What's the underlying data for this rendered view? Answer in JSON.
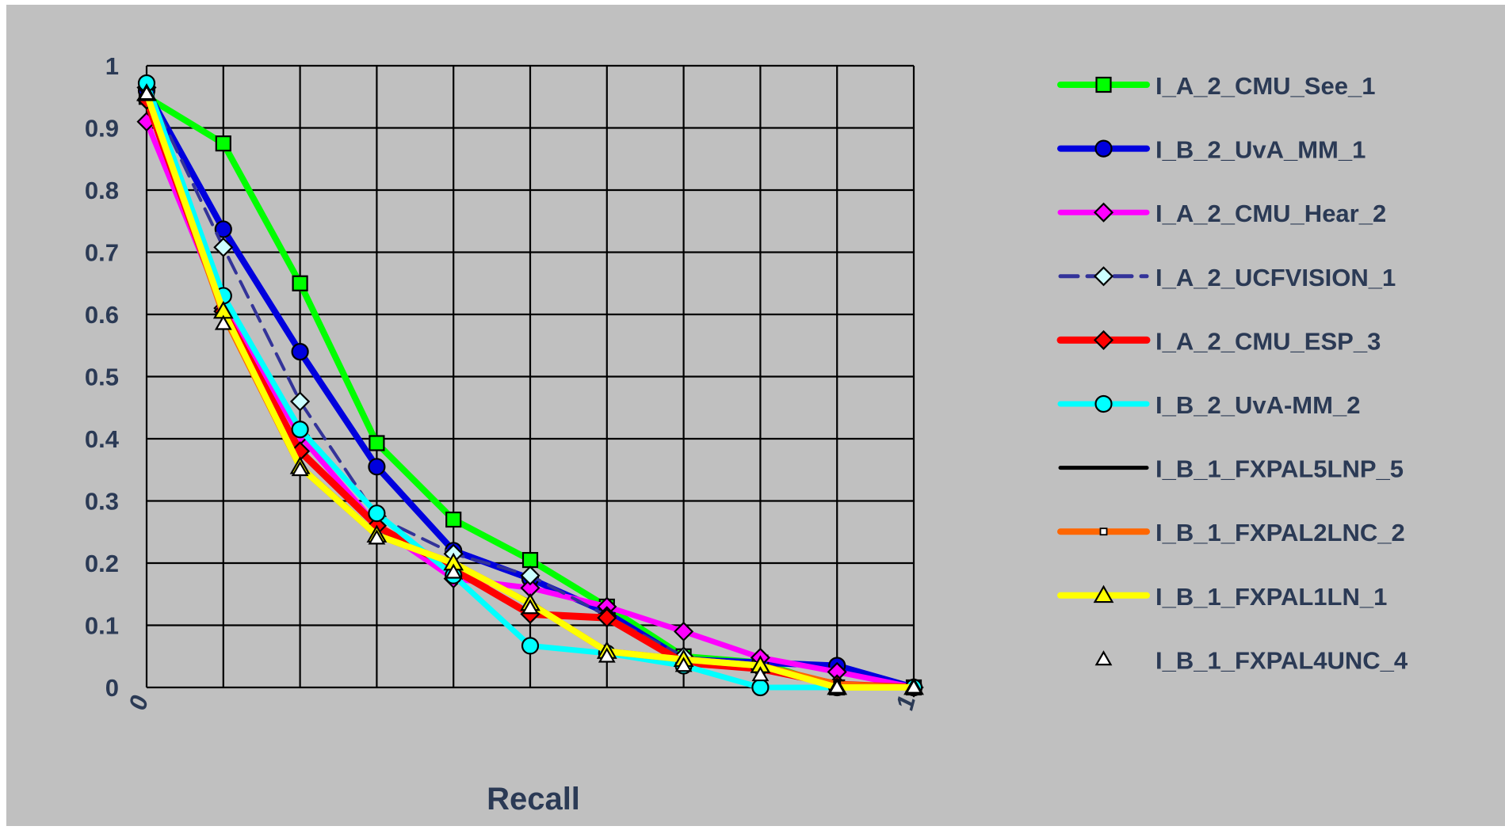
{
  "chart_data": {
    "type": "line",
    "title": "",
    "xlabel": "Recall",
    "ylabel": "",
    "xlim": [
      0,
      1
    ],
    "ylim": [
      0,
      1
    ],
    "grid": true,
    "legend_position": "right",
    "x": [
      0,
      0.1,
      0.2,
      0.3,
      0.4,
      0.5,
      0.6,
      0.7,
      0.8,
      0.9,
      1
    ],
    "x_tick_labels": [
      "0",
      "",
      "",
      "",
      "",
      "",
      "",
      "",
      "",
      "",
      "1"
    ],
    "y_ticks": [
      0,
      0.1,
      0.2,
      0.3,
      0.4,
      0.5,
      0.6,
      0.7,
      0.8,
      0.9,
      1
    ],
    "y_tick_labels": [
      "0",
      "0.1",
      "0.2",
      "0.3",
      "0.4",
      "0.5",
      "0.6",
      "0.7",
      "0.8",
      "0.9",
      "1"
    ],
    "colors": {
      "page_background": "#ffffff",
      "chart_background": "#c0c0c0",
      "grid": "#000000",
      "text": "#2b3a55"
    },
    "series": [
      {
        "name": "I_A_2_CMU_See_1",
        "color": "#00ff00",
        "width": 8,
        "marker": "square",
        "marker_fill": "#00ff00",
        "marker_size": 9,
        "dash": "",
        "values": [
          0.95,
          0.875,
          0.65,
          0.393,
          0.27,
          0.205,
          0.13,
          0.05,
          0.04,
          0.0,
          0.0
        ]
      },
      {
        "name": "I_B_2_UvA_MM_1",
        "color": "#0000dd",
        "width": 8,
        "marker": "circle",
        "marker_fill": "#0000dd",
        "marker_size": 10,
        "dash": "",
        "values": [
          0.96,
          0.737,
          0.54,
          0.355,
          0.22,
          0.175,
          0.12,
          0.045,
          0.04,
          0.035,
          0.0
        ]
      },
      {
        "name": "I_A_2_CMU_Hear_2",
        "color": "#ff00ff",
        "width": 7,
        "marker": "diamond",
        "marker_fill": "#ff00ff",
        "marker_size": 11,
        "dash": "",
        "values": [
          0.91,
          0.61,
          0.405,
          0.26,
          0.175,
          0.16,
          0.13,
          0.09,
          0.048,
          0.025,
          0.0
        ]
      },
      {
        "name": "I_A_2_UCFVISION_1",
        "color": "#333399",
        "width": 4,
        "marker": "diamond",
        "marker_fill": "#ccffff",
        "marker_size": 11,
        "dash": "22,12",
        "values": [
          0.965,
          0.708,
          0.46,
          0.275,
          0.215,
          0.18,
          0.115,
          0.05,
          0.03,
          0.005,
          0.0
        ]
      },
      {
        "name": "I_A_2_CMU_ESP_3",
        "color": "#ff0000",
        "width": 9,
        "marker": "diamond",
        "marker_fill": "#ff0000",
        "marker_size": 11,
        "dash": "",
        "values": [
          0.945,
          0.605,
          0.38,
          0.26,
          0.19,
          0.118,
          0.112,
          0.04,
          0.03,
          0.005,
          0.0
        ]
      },
      {
        "name": "I_B_2_UvA-MM_2",
        "color": "#00ffff",
        "width": 7,
        "marker": "circle",
        "marker_fill": "#00ffff",
        "marker_size": 10,
        "dash": "",
        "values": [
          0.972,
          0.63,
          0.415,
          0.28,
          0.18,
          0.067,
          0.055,
          0.035,
          0.0,
          0.0,
          0.0
        ]
      },
      {
        "name": "I_B_1_FXPAL5LNP_5",
        "color": "#000000",
        "width": 2,
        "marker": "none",
        "marker_fill": "#000000",
        "marker_size": 0,
        "dash": "",
        "values": [
          0.955,
          0.6,
          0.36,
          0.25,
          0.2,
          0.14,
          0.06,
          0.045,
          0.035,
          0.005,
          0.0
        ]
      },
      {
        "name": "I_B_1_FXPAL2LNC_2",
        "color": "#ff6600",
        "width": 8,
        "marker": "small-square",
        "marker_fill": "#ffffff",
        "marker_size": 4,
        "dash": "",
        "values": [
          0.955,
          0.6,
          0.355,
          0.245,
          0.2,
          0.135,
          0.058,
          0.045,
          0.035,
          0.005,
          0.0
        ]
      },
      {
        "name": "I_B_1_FXPAL1LN_1",
        "color": "#ffff00",
        "width": 8,
        "marker": "triangle",
        "marker_fill": "#ffff00",
        "marker_size": 11,
        "dash": "",
        "values": [
          0.955,
          0.605,
          0.355,
          0.245,
          0.2,
          0.135,
          0.058,
          0.045,
          0.035,
          0.0,
          0.0
        ]
      },
      {
        "name": "I_B_1_FXPAL4UNC_4",
        "color": "none",
        "width": 0,
        "marker": "triangle",
        "marker_fill": "#ffffff",
        "marker_size": 9,
        "dash": "",
        "values": [
          0.955,
          0.585,
          0.35,
          0.24,
          0.185,
          0.128,
          0.05,
          0.035,
          0.02,
          0.0,
          0.0
        ]
      }
    ]
  }
}
